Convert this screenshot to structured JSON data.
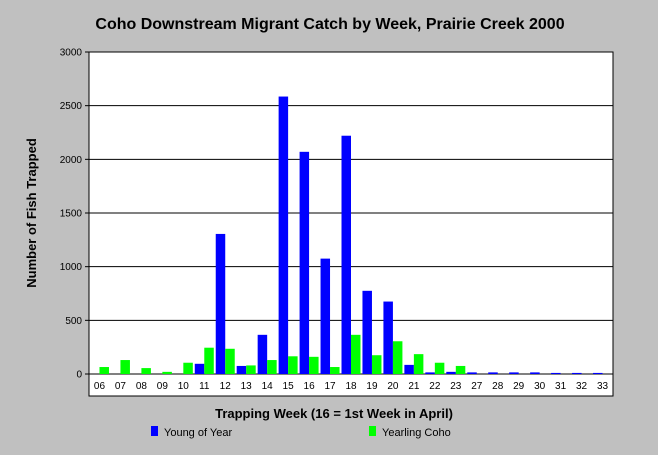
{
  "chart_data": {
    "type": "bar",
    "title": "Coho Downstream Migrant Catch by Week, Prairie Creek 2000",
    "xlabel": "Trapping Week (16 = 1st Week in April)",
    "ylabel": "Number of Fish Trapped",
    "ylim": [
      0,
      3000
    ],
    "yticks": [
      "0",
      "500",
      "1000",
      "1500",
      "2000",
      "2500",
      "3000"
    ],
    "categories": [
      "06",
      "07",
      "08",
      "09",
      "10",
      "11",
      "12",
      "13",
      "14",
      "15",
      "16",
      "17",
      "18",
      "19",
      "20",
      "21",
      "22",
      "23",
      "27",
      "28",
      "29",
      "30",
      "31",
      "32",
      "33"
    ],
    "series": [
      {
        "name": "Young of Year",
        "color": "#0000ff",
        "values": [
          0,
          0,
          0,
          0,
          0,
          95,
          1305,
          75,
          365,
          2585,
          2070,
          1075,
          2220,
          775,
          675,
          85,
          15,
          20,
          15,
          15,
          15,
          15,
          10,
          10,
          10
        ]
      },
      {
        "name": "Yearling Coho",
        "color": "#00ff00",
        "values": [
          65,
          130,
          55,
          20,
          105,
          245,
          235,
          80,
          130,
          165,
          160,
          65,
          365,
          175,
          305,
          185,
          105,
          75,
          0,
          0,
          0,
          0,
          0,
          0,
          0
        ]
      }
    ],
    "grid": true,
    "legend_position": "bottom"
  }
}
